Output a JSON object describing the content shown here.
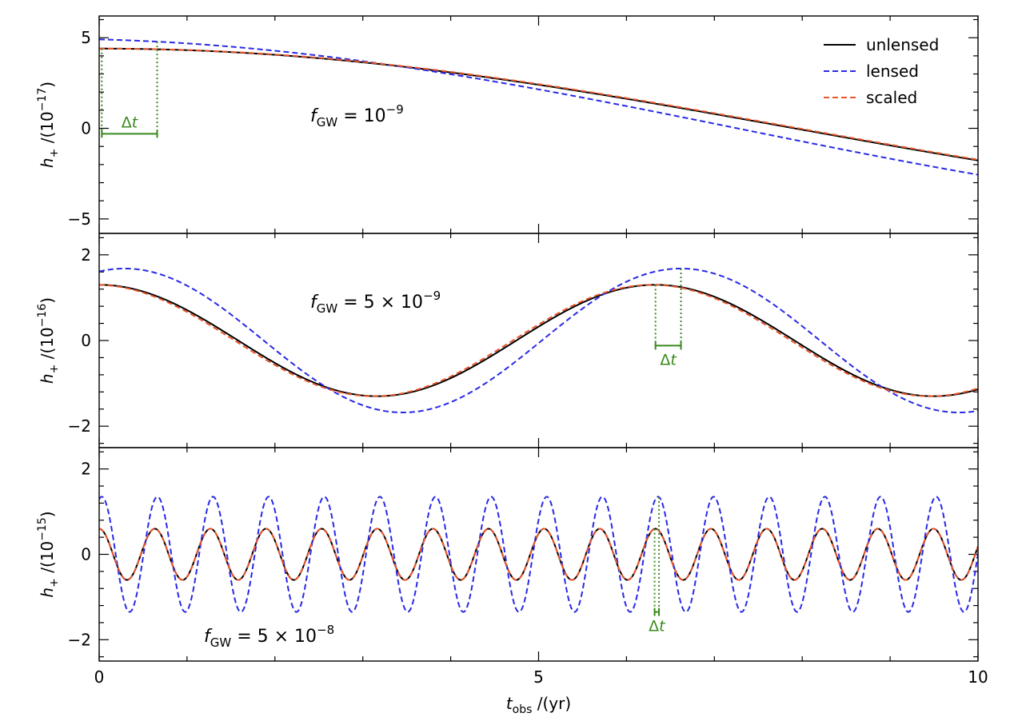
{
  "chart_data": {
    "type": "line",
    "shared_x": {
      "xlabel": "t_obs /(yr)",
      "xlim": [
        0,
        10
      ],
      "xticks": [
        0,
        5,
        10
      ],
      "tick_labels": [
        "0",
        "5",
        "10"
      ]
    },
    "legend": {
      "placement": "top-right",
      "entries": [
        "unlensed",
        "lensed",
        "scaled"
      ]
    },
    "colors": {
      "unlensed": "#000000",
      "lensed": "#2929e6",
      "scaled": "#e8562a",
      "delay_marker": "#3a8a1e"
    },
    "panels": [
      {
        "ylabel": "h+ /(10^-17)",
        "ylim": [
          -5.8,
          6.2
        ],
        "yticks": [
          -5,
          0,
          5
        ],
        "ytick_labels": [
          "−5",
          "0",
          "5"
        ],
        "annotation": "f_GW = 10^-9",
        "series": [
          {
            "name": "unlensed",
            "style": "solid",
            "amplitude": 4.4,
            "frequency_per_yr": 0.0316,
            "phase_shift_yr": 0
          },
          {
            "name": "lensed",
            "style": "dashed",
            "amplitude": 4.95,
            "frequency_per_yr": 0.0316,
            "phase_shift_yr": -0.65
          },
          {
            "name": "scaled",
            "style": "dashed",
            "amplitude": 4.4,
            "frequency_per_yr": 0.0316,
            "phase_shift_yr": 0.05
          }
        ],
        "delay": {
          "label": "Δt",
          "t_start": 0.03,
          "t_end": 0.66
        }
      },
      {
        "ylabel": "h+ /(10^-16)",
        "ylim": [
          -2.5,
          2.5
        ],
        "yticks": [
          -2,
          0,
          2
        ],
        "ytick_labels": [
          "−2",
          "0",
          "2"
        ],
        "annotation": "f_GW = 5 × 10^-9",
        "series": [
          {
            "name": "unlensed",
            "style": "solid",
            "amplitude": 1.3,
            "frequency_per_yr": 0.158,
            "phase_shift_yr": 0
          },
          {
            "name": "lensed",
            "style": "dashed",
            "amplitude": 1.68,
            "frequency_per_yr": 0.158,
            "phase_shift_yr": 0.29
          },
          {
            "name": "scaled",
            "style": "dashed",
            "amplitude": 1.3,
            "frequency_per_yr": 0.158,
            "phase_shift_yr": -0.04
          }
        ],
        "delay": {
          "label": "Δt",
          "t_start": 6.33,
          "t_end": 6.62
        }
      },
      {
        "ylabel": "h+ /(10^-15)",
        "ylim": [
          -2.5,
          2.5
        ],
        "yticks": [
          -2,
          0,
          2
        ],
        "ytick_labels": [
          "−2",
          "0",
          "2"
        ],
        "annotation": "f_GW = 5 × 10^-8",
        "series": [
          {
            "name": "unlensed",
            "style": "solid",
            "amplitude": 0.6,
            "frequency_per_yr": 1.58,
            "phase_shift_yr": 0
          },
          {
            "name": "lensed",
            "style": "dashed",
            "amplitude": 1.35,
            "frequency_per_yr": 1.58,
            "phase_shift_yr": 0.03
          },
          {
            "name": "scaled",
            "style": "dashed",
            "amplitude": 0.6,
            "frequency_per_yr": 1.58,
            "phase_shift_yr": 0
          }
        ],
        "delay": {
          "label": "Δt",
          "t_start": 6.32,
          "t_end": 6.37
        }
      }
    ]
  }
}
